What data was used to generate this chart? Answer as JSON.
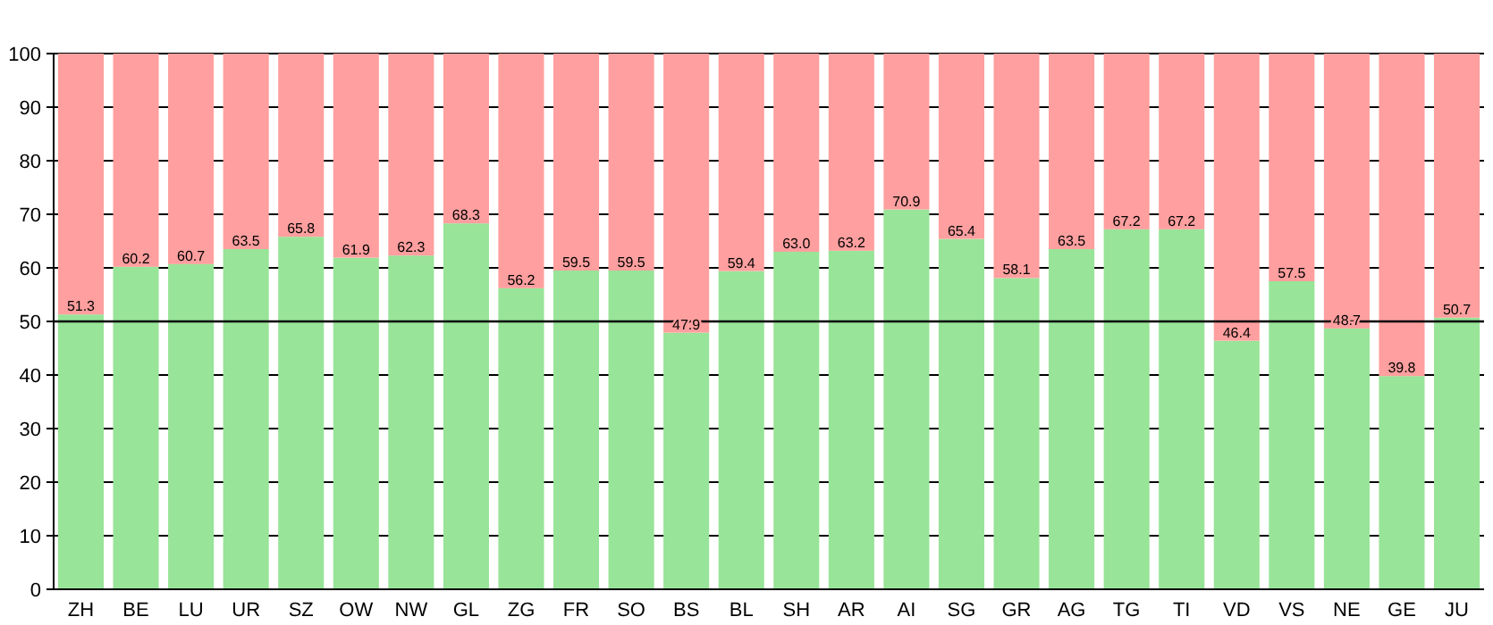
{
  "chart_data": {
    "type": "bar",
    "stacked": true,
    "categories": [
      "ZH",
      "BE",
      "LU",
      "UR",
      "SZ",
      "OW",
      "NW",
      "GL",
      "ZG",
      "FR",
      "SO",
      "BS",
      "BL",
      "SH",
      "AR",
      "AI",
      "SG",
      "GR",
      "AG",
      "TG",
      "TI",
      "VD",
      "VS",
      "NE",
      "GE",
      "JU"
    ],
    "series": [
      {
        "color": "#98e498",
        "values": [
          51.3,
          60.2,
          60.7,
          63.5,
          65.8,
          61.9,
          62.3,
          68.3,
          56.2,
          59.5,
          59.5,
          47.9,
          59.4,
          63.0,
          63.2,
          70.9,
          65.4,
          58.1,
          63.5,
          67.2,
          67.2,
          46.4,
          57.5,
          48.7,
          39.8,
          50.7
        ],
        "value_labels": [
          "51.3",
          "60.2",
          "60.7",
          "63.5",
          "65.8",
          "61.9",
          "62.3",
          "68.3",
          "56.2",
          "59.5",
          "59.5",
          "47.9",
          "59.4",
          "63.0",
          "63.2",
          "70.9",
          "65.4",
          "58.1",
          "63.5",
          "67.2",
          "67.2",
          "46.4",
          "57.5",
          "48.7",
          "39.8",
          "50.7"
        ]
      },
      {
        "color": "#ff9f9f",
        "values": [
          48.7,
          39.8,
          39.3,
          36.5,
          34.2,
          38.1,
          37.7,
          31.7,
          43.8,
          40.5,
          40.5,
          52.1,
          40.6,
          37.0,
          36.8,
          29.1,
          34.6,
          41.9,
          36.5,
          32.8,
          32.8,
          53.6,
          42.5,
          51.3,
          60.2,
          49.3
        ]
      }
    ],
    "ylim": [
      0,
      100
    ],
    "yticks": [
      0,
      10,
      20,
      30,
      40,
      50,
      60,
      70,
      80,
      90,
      100
    ],
    "grid": "y",
    "ref_lines": [
      {
        "axis": "y",
        "value": 50,
        "color": "#000000"
      }
    ]
  }
}
